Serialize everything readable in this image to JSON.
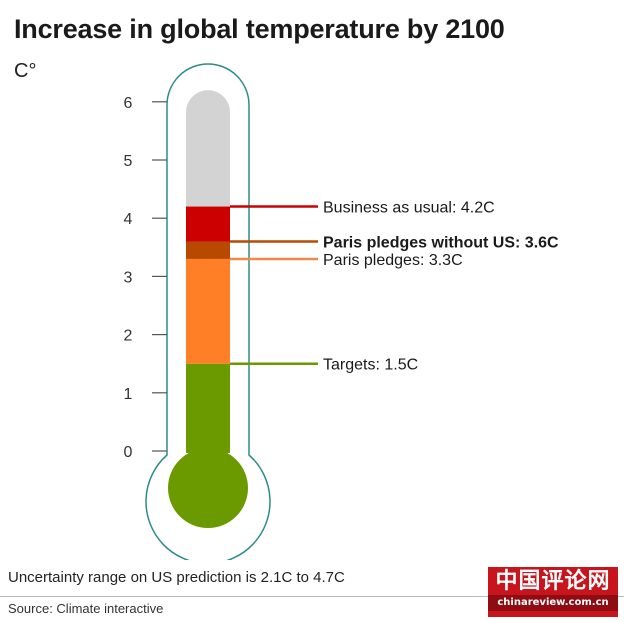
{
  "title": "Increase in global temperature by 2100",
  "unit_label": "C°",
  "note": "Uncertainty range on US prediction is 2.1C to 4.7C",
  "source": "Source: Climate interactive",
  "watermark": {
    "main": "中国评论网",
    "sub": "chinareview.com.cn"
  },
  "chart_data": {
    "type": "thermometer",
    "title": "Increase in global temperature by 2100",
    "ylabel": "C°",
    "ylim": [
      0,
      6.2
    ],
    "ticks": [
      0,
      1,
      2,
      3,
      4,
      5,
      6
    ],
    "segments": [
      {
        "from": 0,
        "to": 1.5,
        "color": "#6a9a00"
      },
      {
        "from": 1.5,
        "to": 3.3,
        "color": "#ff7f27"
      },
      {
        "from": 3.3,
        "to": 3.6,
        "color": "#b84a00"
      },
      {
        "from": 3.6,
        "to": 4.2,
        "color": "#cc0000"
      },
      {
        "from": 4.2,
        "to": 6.2,
        "color": "#d3d3d3"
      }
    ],
    "annotations": [
      {
        "value": 4.2,
        "label": "Business as usual: 4.2C",
        "color": "#cc0000",
        "bold": false
      },
      {
        "value": 3.6,
        "label": "Paris pledges without US: 3.6C",
        "color": "#b84a00",
        "bold": true
      },
      {
        "value": 3.3,
        "label": "Paris pledges: 3.3C",
        "color": "#f08a4b",
        "bold": false
      },
      {
        "value": 1.5,
        "label": "Targets: 1.5C",
        "color": "#6a9a00",
        "bold": false
      }
    ],
    "colors": {
      "bulb": "#6a9a00",
      "outline": "#2e8b8b",
      "tick": "#555555"
    }
  }
}
